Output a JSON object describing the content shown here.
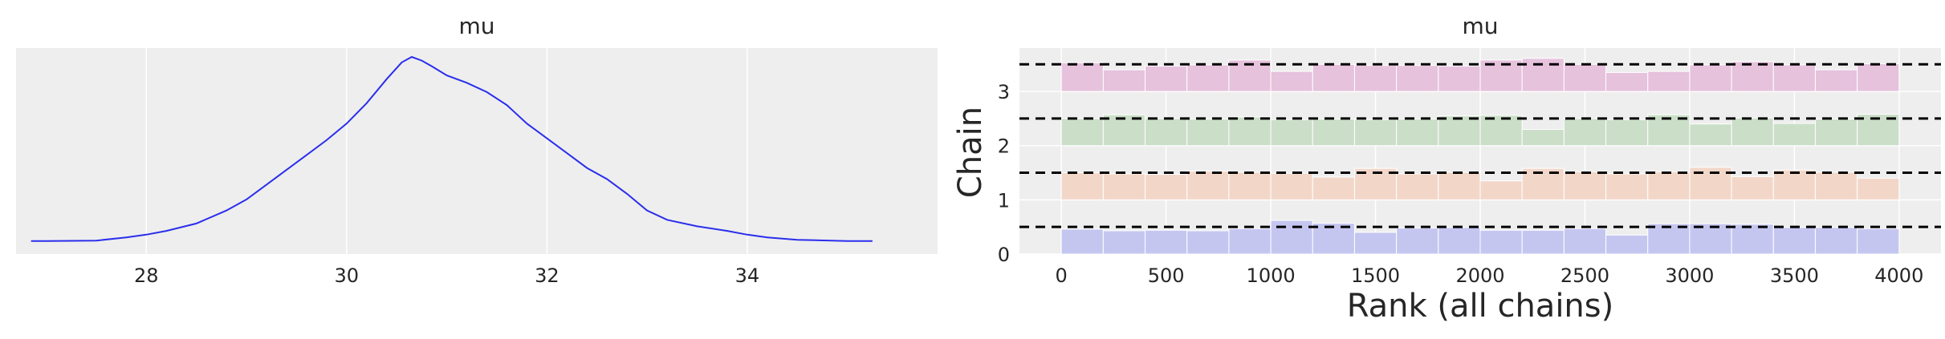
{
  "chart_data": [
    {
      "type": "line",
      "title": "mu",
      "xlabel": "",
      "ylabel": "",
      "xlim": [
        26.7,
        35.9
      ],
      "xticks": [
        28,
        30,
        32,
        34
      ],
      "grid": true,
      "color": "#2a2eec",
      "background": "#eeeeee",
      "series": [
        {
          "x": [
            26.85,
            27.0,
            27.5,
            27.8,
            28.0,
            28.2,
            28.5,
            28.8,
            29.0,
            29.2,
            29.5,
            29.8,
            30.0,
            30.2,
            30.4,
            30.55,
            30.65,
            30.75,
            30.85,
            31.0,
            31.2,
            31.4,
            31.6,
            31.8,
            32.0,
            32.2,
            32.4,
            32.6,
            32.8,
            33.0,
            33.2,
            33.5,
            33.8,
            34.0,
            34.2,
            34.5,
            35.0,
            35.25
          ],
          "y": [
            0.005,
            0.005,
            0.008,
            0.025,
            0.04,
            0.06,
            0.1,
            0.17,
            0.23,
            0.31,
            0.43,
            0.55,
            0.64,
            0.75,
            0.88,
            0.97,
            1.0,
            0.98,
            0.95,
            0.9,
            0.86,
            0.81,
            0.74,
            0.64,
            0.56,
            0.48,
            0.4,
            0.34,
            0.26,
            0.17,
            0.12,
            0.085,
            0.06,
            0.04,
            0.025,
            0.012,
            0.005,
            0.005
          ]
        }
      ]
    },
    {
      "type": "bar",
      "title": "mu",
      "xlabel": "Rank (all chains)",
      "ylabel": "Chain",
      "xlim": [
        -200,
        4200
      ],
      "ylim": [
        0,
        3.8
      ],
      "xticks": [
        0,
        500,
        1000,
        1500,
        2000,
        2500,
        3000,
        3500,
        4000
      ],
      "yticks": [
        0,
        1,
        2,
        3
      ],
      "grid": true,
      "background": "#eeeeee",
      "bin_edges": [
        0,
        200,
        400,
        600,
        800,
        1000,
        1200,
        1400,
        1600,
        1800,
        2000,
        2200,
        2400,
        2600,
        2800,
        3000,
        3200,
        3400,
        3600,
        3800,
        4000
      ],
      "reference_lines": [
        0.5,
        1.5,
        2.5,
        3.5
      ],
      "series": [
        {
          "name": "0",
          "color": "#c5c6f0",
          "offset": 0,
          "heights": [
            0.46,
            0.43,
            0.44,
            0.43,
            0.47,
            0.62,
            0.57,
            0.4,
            0.48,
            0.49,
            0.44,
            0.44,
            0.47,
            0.35,
            0.56,
            0.56,
            0.55,
            0.49,
            0.49,
            0.47
          ]
        },
        {
          "name": "1",
          "color": "#f2d7c9",
          "offset": 1,
          "heights": [
            0.5,
            0.48,
            0.47,
            0.53,
            0.51,
            0.49,
            0.42,
            0.58,
            0.48,
            0.51,
            0.35,
            0.58,
            0.52,
            0.48,
            0.52,
            0.6,
            0.43,
            0.55,
            0.51,
            0.4
          ]
        },
        {
          "name": "2",
          "color": "#cbdfc8",
          "offset": 2,
          "heights": [
            0.5,
            0.57,
            0.5,
            0.49,
            0.53,
            0.48,
            0.49,
            0.48,
            0.49,
            0.55,
            0.56,
            0.3,
            0.5,
            0.48,
            0.57,
            0.4,
            0.51,
            0.41,
            0.49,
            0.58
          ]
        },
        {
          "name": "3",
          "color": "#e6c2dd",
          "offset": 3,
          "heights": [
            0.53,
            0.4,
            0.47,
            0.49,
            0.58,
            0.37,
            0.5,
            0.48,
            0.48,
            0.47,
            0.58,
            0.61,
            0.5,
            0.35,
            0.37,
            0.49,
            0.55,
            0.49,
            0.4,
            0.51
          ]
        }
      ]
    }
  ]
}
